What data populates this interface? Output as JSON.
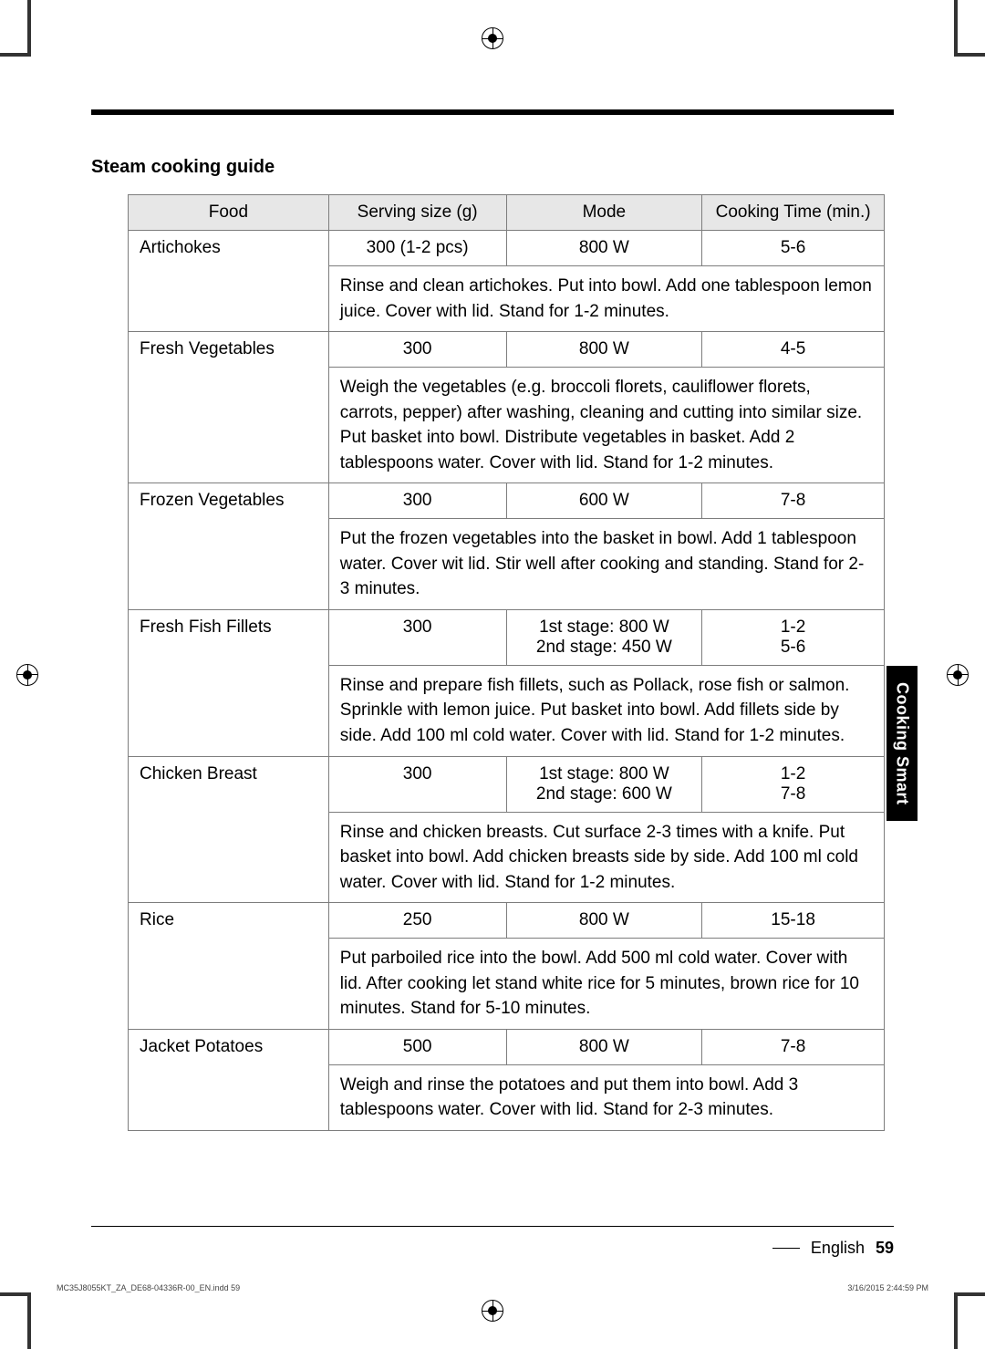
{
  "section_title": "Steam cooking guide",
  "headers": {
    "food": "Food",
    "size": "Serving size (g)",
    "mode": "Mode",
    "time": "Cooking Time (min.)"
  },
  "rows": [
    {
      "food": "Artichokes",
      "size": "300 (1-2 pcs)",
      "mode": "800 W",
      "time": "5-6",
      "desc": "Rinse and clean artichokes. Put into bowl. Add one tablespoon lemon juice. Cover with lid. Stand for 1-2 minutes."
    },
    {
      "food": "Fresh Vegetables",
      "size": "300",
      "mode": "800 W",
      "time": "4-5",
      "desc": "Weigh the vegetables (e.g. broccoli florets, cauliflower florets, carrots, pepper) after washing, cleaning and cutting into similar size. Put basket into bowl. Distribute vegetables in basket. Add 2 tablespoons water. Cover with lid. Stand for 1-2 minutes."
    },
    {
      "food": "Frozen Vegetables",
      "size": "300",
      "mode": "600 W",
      "time": "7-8",
      "desc": "Put the frozen vegetables into the basket in bowl. Add 1 tablespoon water. Cover wit lid. Stir well after cooking and standing. Stand for 2-3 minutes."
    },
    {
      "food": "Fresh Fish Fillets",
      "size": "300",
      "mode": "1st stage: 800 W\n2nd stage: 450 W",
      "time": "1-2\n5-6",
      "desc": "Rinse and prepare fish fillets, such as Pollack, rose fish or salmon. Sprinkle with lemon juice. Put basket into bowl. Add fillets side by side. Add 100 ml cold water. Cover with lid. Stand for 1-2 minutes."
    },
    {
      "food": "Chicken Breast",
      "size": "300",
      "mode": "1st stage: 800 W\n2nd stage: 600 W",
      "time": "1-2\n7-8",
      "desc": "Rinse and chicken breasts. Cut surface 2-3 times with a knife. Put basket into bowl. Add chicken breasts side by side. Add 100 ml cold water. Cover with lid. Stand for 1-2 minutes."
    },
    {
      "food": "Rice",
      "size": "250",
      "mode": "800 W",
      "time": "15-18",
      "desc": "Put parboiled rice into the bowl. Add 500 ml cold water. Cover with lid. After cooking let stand white rice for 5 minutes, brown rice for 10 minutes. Stand for 5-10 minutes."
    },
    {
      "food": "Jacket Potatoes",
      "size": "500",
      "mode": "800 W",
      "time": "7-8",
      "desc": "Weigh and rinse the potatoes and put them into bowl. Add 3 tablespoons water. Cover with lid. Stand for 2-3 minutes."
    }
  ],
  "side_tab": "Cooking Smart",
  "footer": {
    "lang": "English",
    "page": "59"
  },
  "small_footer_left": "MC35J8055KT_ZA_DE68-04336R-00_EN.indd   59",
  "small_footer_right": "3/16/2015   2:44:59 PM"
}
